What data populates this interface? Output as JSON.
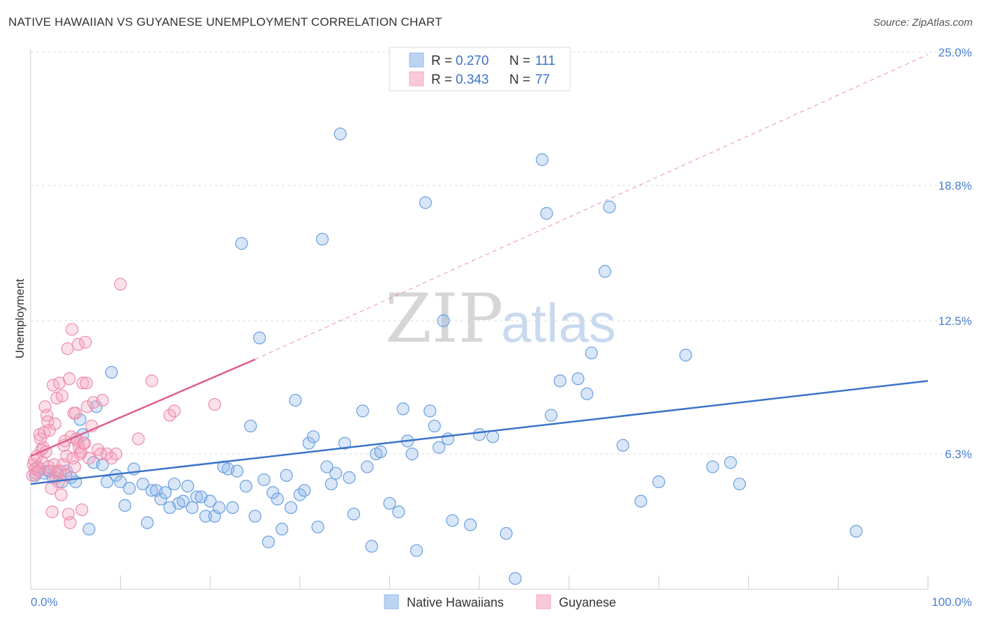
{
  "header": {
    "title": "NATIVE HAWAIIAN VS GUYANESE UNEMPLOYMENT CORRELATION CHART",
    "source": "Source: ZipAtlas.com"
  },
  "watermark": {
    "zip": "ZIP",
    "atlas": "atlas"
  },
  "legend": {
    "rows": [
      {
        "r_label": "R = ",
        "r_value": "0.270",
        "n_label": "N = ",
        "n_value": "111",
        "color": "#8fb7e8"
      },
      {
        "r_label": "R = ",
        "r_value": "0.343",
        "n_label": "N = ",
        "n_value": "77",
        "color": "#f4a7c0"
      }
    ]
  },
  "chart_data": {
    "type": "scatter",
    "ylabel": "Unemployment",
    "xlim": [
      0,
      100
    ],
    "ylim": [
      0,
      25
    ],
    "x_tick_labels": [
      "0.0%",
      "100.0%"
    ],
    "y_ticks": [
      6.3,
      12.5,
      18.8,
      25.0
    ],
    "y_tick_labels": [
      "6.3%",
      "12.5%",
      "18.8%",
      "25.0%"
    ],
    "grid": "horizontal dashed",
    "legend_position": "top-center",
    "series": [
      {
        "name": "Native Hawaiians",
        "color": "#8fb7e8",
        "line_color": "#3a73c8",
        "trend": {
          "x0": 0,
          "y0": 4.9,
          "x1": 100,
          "y1": 9.7
        },
        "points": [
          [
            0.5,
            5.3
          ],
          [
            1,
            5.6
          ],
          [
            1.5,
            5.4
          ],
          [
            2,
            5.5
          ],
          [
            2.5,
            5.2
          ],
          [
            3,
            5.4
          ],
          [
            3.5,
            5.0
          ],
          [
            4,
            5.5
          ],
          [
            4.5,
            5.2
          ],
          [
            5,
            5.0
          ],
          [
            5.5,
            7.9
          ],
          [
            5.8,
            7.2
          ],
          [
            6.5,
            2.8
          ],
          [
            7,
            5.9
          ],
          [
            7.3,
            8.5
          ],
          [
            8,
            5.8
          ],
          [
            8.5,
            5.0
          ],
          [
            9,
            10.1
          ],
          [
            9.5,
            5.3
          ],
          [
            10,
            5.0
          ],
          [
            10.5,
            3.9
          ],
          [
            11,
            4.7
          ],
          [
            11.5,
            5.6
          ],
          [
            12.5,
            4.9
          ],
          [
            13,
            3.1
          ],
          [
            13.5,
            4.6
          ],
          [
            14,
            4.6
          ],
          [
            14.5,
            4.2
          ],
          [
            15,
            4.5
          ],
          [
            15.5,
            3.8
          ],
          [
            16,
            4.9
          ],
          [
            16.5,
            4.0
          ],
          [
            17,
            4.1
          ],
          [
            17.5,
            4.8
          ],
          [
            18,
            3.8
          ],
          [
            18.5,
            4.3
          ],
          [
            19,
            4.3
          ],
          [
            19.5,
            3.4
          ],
          [
            20,
            4.1
          ],
          [
            20.5,
            3.4
          ],
          [
            21,
            3.8
          ],
          [
            21.5,
            5.7
          ],
          [
            22,
            5.6
          ],
          [
            22.5,
            3.8
          ],
          [
            23,
            5.5
          ],
          [
            23.5,
            16.1
          ],
          [
            24,
            4.8
          ],
          [
            24.5,
            7.6
          ],
          [
            25,
            3.4
          ],
          [
            25.5,
            11.7
          ],
          [
            26,
            5.1
          ],
          [
            26.5,
            2.2
          ],
          [
            27,
            4.5
          ],
          [
            27.5,
            4.2
          ],
          [
            28,
            2.8
          ],
          [
            28.5,
            5.3
          ],
          [
            29,
            3.8
          ],
          [
            29.5,
            8.8
          ],
          [
            30,
            4.4
          ],
          [
            30.5,
            4.6
          ],
          [
            31,
            6.8
          ],
          [
            31.5,
            7.1
          ],
          [
            32,
            2.9
          ],
          [
            32.5,
            16.3
          ],
          [
            33,
            5.7
          ],
          [
            33.5,
            4.9
          ],
          [
            34,
            5.4
          ],
          [
            34.5,
            21.2
          ],
          [
            35,
            6.8
          ],
          [
            35.5,
            5.2
          ],
          [
            36,
            3.5
          ],
          [
            37,
            8.3
          ],
          [
            37.5,
            5.7
          ],
          [
            38,
            2.0
          ],
          [
            38.5,
            6.3
          ],
          [
            39,
            6.4
          ],
          [
            40,
            4.0
          ],
          [
            41,
            3.6
          ],
          [
            41.5,
            8.4
          ],
          [
            42,
            6.9
          ],
          [
            42.5,
            6.3
          ],
          [
            43,
            1.8
          ],
          [
            44,
            18.0
          ],
          [
            44.5,
            8.3
          ],
          [
            45,
            7.6
          ],
          [
            45.5,
            6.6
          ],
          [
            46,
            12.5
          ],
          [
            46.5,
            7.0
          ],
          [
            47,
            3.2
          ],
          [
            49,
            3.0
          ],
          [
            50,
            7.2
          ],
          [
            51.5,
            7.1
          ],
          [
            53,
            2.6
          ],
          [
            54,
            0.5
          ],
          [
            57,
            20.0
          ],
          [
            57.5,
            17.5
          ],
          [
            58,
            8.1
          ],
          [
            59,
            9.7
          ],
          [
            61,
            9.8
          ],
          [
            62,
            9.1
          ],
          [
            62.5,
            11.0
          ],
          [
            64,
            14.8
          ],
          [
            64.5,
            17.8
          ],
          [
            66,
            6.7
          ],
          [
            68,
            4.1
          ],
          [
            70,
            5.0
          ],
          [
            73,
            10.9
          ],
          [
            76,
            5.7
          ],
          [
            78,
            5.9
          ],
          [
            79,
            4.9
          ],
          [
            92,
            2.7
          ]
        ]
      },
      {
        "name": "Guyanese",
        "color": "#f4a7c0",
        "line_color": "#e0608c",
        "trend": {
          "x0": 0,
          "y0": 6.2,
          "x1": 25,
          "y1": 10.7,
          "dashed_to_x": 100,
          "dashed_to_y": 24.9
        },
        "points": [
          [
            0.2,
            5.3
          ],
          [
            0.3,
            5.8
          ],
          [
            0.4,
            6.0
          ],
          [
            0.5,
            5.6
          ],
          [
            0.6,
            5.4
          ],
          [
            0.7,
            6.2
          ],
          [
            0.8,
            5.7
          ],
          [
            0.9,
            5.5
          ],
          [
            1,
            7.2
          ],
          [
            1.1,
            7.0
          ],
          [
            1.2,
            6.5
          ],
          [
            1.3,
            5.9
          ],
          [
            1.4,
            6.6
          ],
          [
            1.5,
            7.3
          ],
          [
            1.6,
            8.5
          ],
          [
            1.7,
            6.4
          ],
          [
            1.8,
            8.1
          ],
          [
            1.9,
            7.8
          ],
          [
            2,
            5.7
          ],
          [
            2.1,
            7.4
          ],
          [
            2.2,
            5.5
          ],
          [
            2.3,
            4.7
          ],
          [
            2.4,
            3.6
          ],
          [
            2.5,
            9.5
          ],
          [
            2.6,
            5.8
          ],
          [
            2.7,
            7.7
          ],
          [
            2.8,
            5.2
          ],
          [
            2.9,
            8.9
          ],
          [
            3,
            5.5
          ],
          [
            3.1,
            5.0
          ],
          [
            3.2,
            9.6
          ],
          [
            3.3,
            5.5
          ],
          [
            3.4,
            4.4
          ],
          [
            3.5,
            9.0
          ],
          [
            3.6,
            5.8
          ],
          [
            3.7,
            6.7
          ],
          [
            3.8,
            6.9
          ],
          [
            3.9,
            5.3
          ],
          [
            4,
            6.2
          ],
          [
            4.1,
            11.2
          ],
          [
            4.2,
            3.5
          ],
          [
            4.3,
            9.8
          ],
          [
            4.4,
            3.1
          ],
          [
            4.5,
            7.1
          ],
          [
            4.6,
            12.1
          ],
          [
            4.7,
            6.1
          ],
          [
            4.8,
            8.2
          ],
          [
            4.9,
            5.7
          ],
          [
            5,
            8.2
          ],
          [
            5.1,
            7.0
          ],
          [
            5.2,
            6.9
          ],
          [
            5.3,
            11.4
          ],
          [
            5.4,
            6.6
          ],
          [
            5.5,
            6.3
          ],
          [
            5.6,
            6.4
          ],
          [
            5.7,
            3.7
          ],
          [
            5.8,
            9.6
          ],
          [
            5.9,
            6.8
          ],
          [
            6,
            6.8
          ],
          [
            6.1,
            11.5
          ],
          [
            6.2,
            9.6
          ],
          [
            6.3,
            8.5
          ],
          [
            6.5,
            6.1
          ],
          [
            6.8,
            7.6
          ],
          [
            7,
            8.7
          ],
          [
            7.5,
            6.5
          ],
          [
            7.8,
            6.3
          ],
          [
            8,
            8.8
          ],
          [
            8.5,
            6.3
          ],
          [
            9,
            6.1
          ],
          [
            9.5,
            6.3
          ],
          [
            10,
            14.2
          ],
          [
            12,
            7.0
          ],
          [
            13.5,
            9.7
          ],
          [
            15.5,
            8.1
          ],
          [
            16,
            8.3
          ],
          [
            20.5,
            8.6
          ]
        ]
      }
    ]
  },
  "bottom_legend": {
    "items": [
      {
        "label": "Native Hawaiians",
        "color": "#8fb7e8"
      },
      {
        "label": "Guyanese",
        "color": "#f4a7c0"
      }
    ]
  }
}
